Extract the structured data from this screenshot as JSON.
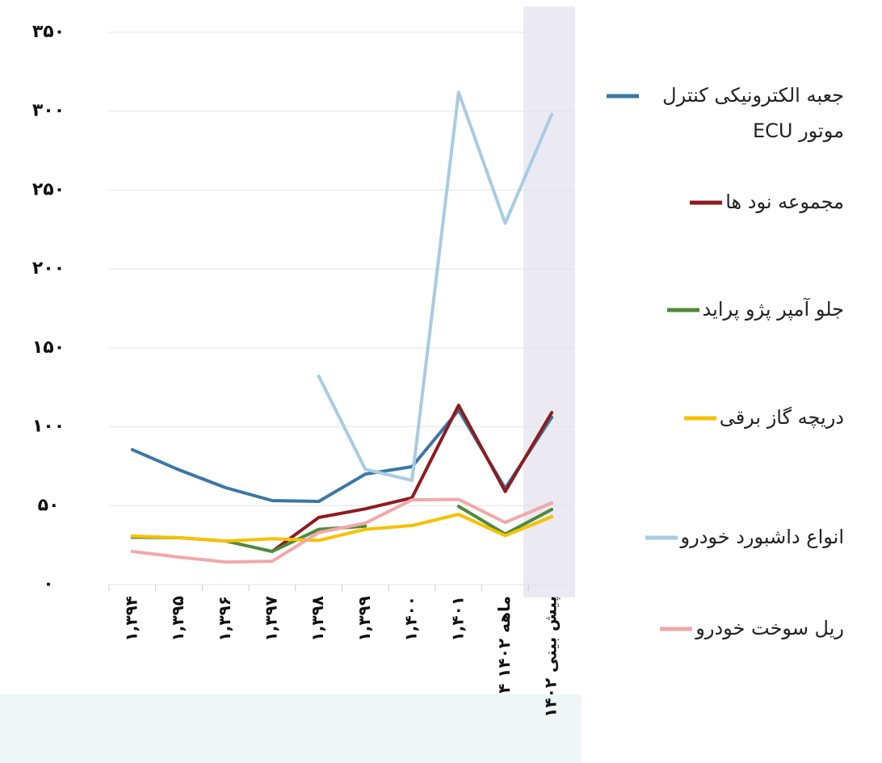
{
  "chart_data": {
    "type": "line",
    "categories": [
      "۱,۳۹۴",
      "۱,۳۹۵",
      "۱,۳۹۶",
      "۱,۳۹۷",
      "۱,۳۹۸",
      "۱,۳۹۹",
      "۱,۴۰۰",
      "۱,۴۰۱",
      "۴ ماهه ۱۴۰۲",
      "پیش بینی ۱۴۰۲"
    ],
    "series": [
      {
        "name": "جعبه الکترونیکی کنترل موتور ECU",
        "color": "#3b77a5",
        "values": [
          85.5,
          72.7,
          61.4,
          53.2,
          52.7,
          70,
          74.7,
          110.5,
          61,
          106
        ]
      },
      {
        "name": "مجموعه نود ها",
        "color": "#8e1b1f",
        "values": [
          null,
          null,
          null,
          21,
          42.5,
          48,
          55,
          113.6,
          59,
          109
        ]
      },
      {
        "name": "جلو آمپر پژو پراید",
        "color": "#4f8a3c",
        "values": [
          30,
          29.7,
          27.6,
          21,
          35,
          37,
          null,
          49.6,
          32,
          47.6
        ]
      },
      {
        "name": "دریچه گاز برقی",
        "color": "#f6c100",
        "values": [
          30.7,
          29.7,
          27.6,
          29,
          28,
          35,
          37.4,
          44.5,
          31,
          43
        ]
      },
      {
        "name": "انواع داشبورد خودرو",
        "color": "#a9cbe4",
        "values": [
          null,
          null,
          null,
          null,
          132,
          73,
          66,
          312,
          229,
          298
        ]
      },
      {
        "name": "ریل سوخت خودرو",
        "color": "#f2a8a8",
        "values": [
          21,
          17.4,
          14.3,
          14.8,
          33,
          39,
          53.7,
          54,
          39.4,
          51.7
        ]
      }
    ],
    "ylim": [
      0,
      350
    ],
    "yticks": [
      {
        "value": 0,
        "label": "۰"
      },
      {
        "value": 50,
        "label": "۵۰"
      },
      {
        "value": 100,
        "label": "۱۰۰"
      },
      {
        "value": 150,
        "label": "۱۵۰"
      },
      {
        "value": 200,
        "label": "۲۰۰"
      },
      {
        "value": 250,
        "label": "۲۵۰"
      },
      {
        "value": 300,
        "label": "۳۰۰"
      },
      {
        "value": 350,
        "label": "۳۵۰"
      }
    ],
    "grid": true
  }
}
